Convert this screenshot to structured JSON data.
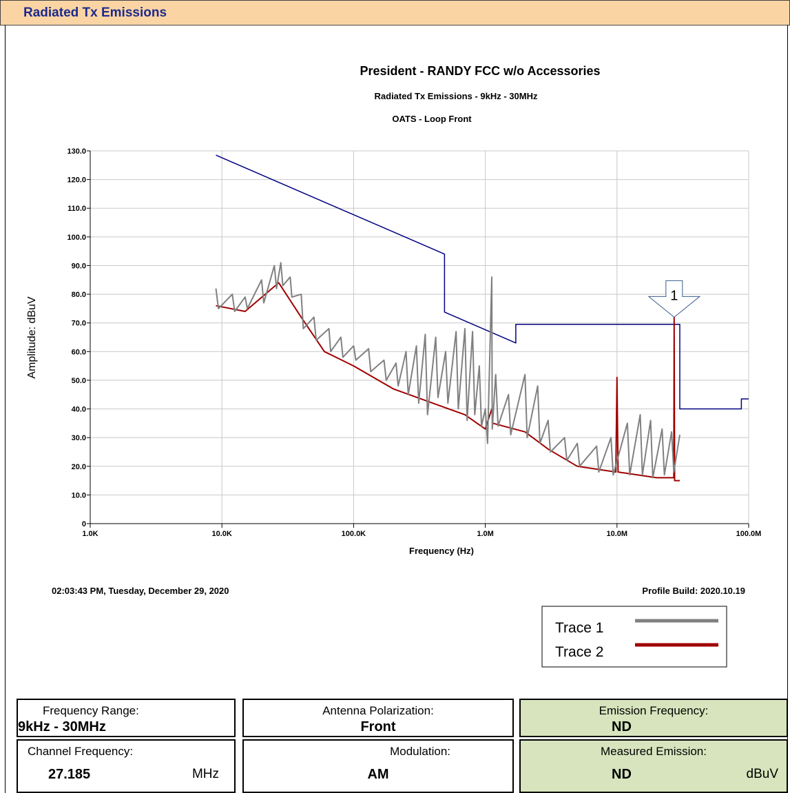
{
  "header": {
    "title": "Radiated Tx Emissions"
  },
  "chart_data": {
    "type": "line",
    "title": "President - RANDY FCC w/o Accessories",
    "subtitle": "Radiated Tx Emissions - 9kHz - 30MHz",
    "subtitle2": "OATS - Loop Front",
    "xlabel": "Frequency (Hz)",
    "ylabel": "Amplitude: dBuV",
    "xscale": "log",
    "xlim": [
      1000,
      100000000
    ],
    "xticks": [
      {
        "value": 1000,
        "label": "1.0K"
      },
      {
        "value": 10000,
        "label": "10.0K"
      },
      {
        "value": 100000,
        "label": "100.0K"
      },
      {
        "value": 1000000,
        "label": "1.0M"
      },
      {
        "value": 10000000,
        "label": "10.0M"
      },
      {
        "value": 100000000,
        "label": "100.0M"
      }
    ],
    "ylim": [
      0,
      130
    ],
    "yticks": [
      0,
      {
        "value": 10,
        "label": "10.0"
      },
      {
        "value": 20,
        "label": "20.0"
      },
      {
        "value": 30,
        "label": "30.0"
      },
      {
        "value": 40,
        "label": "40.0"
      },
      {
        "value": 50,
        "label": "50.0"
      },
      {
        "value": 60,
        "label": "60.0"
      },
      {
        "value": 70,
        "label": "70.0"
      },
      {
        "value": 80,
        "label": "80.0"
      },
      {
        "value": 90,
        "label": "90.0"
      },
      {
        "value": 100,
        "label": "100.0"
      },
      {
        "value": 110,
        "label": "110.0"
      },
      {
        "value": 120,
        "label": "120.0"
      },
      {
        "value": 130,
        "label": "130.0"
      }
    ],
    "grid": true,
    "series": [
      {
        "color": "#000080",
        "x": [
          9000,
          490000,
          490000,
          1705000,
          1705000,
          30000000,
          30000000,
          88000000,
          88000000,
          100000000
        ],
        "values": [
          128.5,
          94,
          73.8,
          63,
          69.5,
          69.5,
          40,
          40,
          43.5,
          43.5
        ]
      },
      {
        "name": "Trace 2",
        "color": "#a00000",
        "x": [
          9000,
          15000,
          27000,
          40000,
          60000,
          100000,
          200000,
          400000,
          700000,
          1000000,
          1120000,
          1140000,
          2000000,
          3000000,
          5000000,
          9800000,
          10000000,
          10200000,
          20000000,
          27000000,
          27185000,
          27400000,
          30000000
        ],
        "values": [
          76,
          74,
          84,
          72,
          60,
          55,
          47,
          42,
          38,
          33,
          40,
          35,
          32,
          26,
          20,
          18,
          51,
          18,
          16,
          16,
          72,
          15,
          15
        ]
      },
      {
        "name": "Trace 1",
        "color": "#808080",
        "x": [
          9000,
          9400,
          12000,
          12500,
          15000,
          15600,
          20000,
          20800,
          25000,
          26000,
          28000,
          29000,
          33000,
          34000,
          40000,
          41500,
          50000,
          52000,
          65000,
          67000,
          80000,
          83000,
          100000,
          104000,
          130000,
          135000,
          170000,
          177000,
          210000,
          218000,
          250000,
          260000,
          300000,
          312000,
          350000,
          364000,
          420000,
          437000,
          500000,
          520000,
          600000,
          624000,
          700000,
          728000,
          800000,
          832000,
          900000,
          936000,
          1000000,
          1040000,
          1120000,
          1130000,
          1200000,
          1250000,
          1500000,
          1560000,
          2000000,
          2080000,
          2500000,
          2600000,
          3000000,
          3120000,
          4000000,
          4160000,
          5000000,
          5200000,
          7000000,
          7280000,
          9000000,
          9360000,
          12000000,
          12500000,
          15000000,
          15600000,
          18000000,
          18700000,
          22000000,
          22900000,
          26000000,
          27000000,
          30000000
        ],
        "values": [
          82,
          75,
          80,
          74,
          79,
          75,
          85,
          77,
          90,
          82,
          91,
          83,
          86,
          79,
          80,
          68,
          72,
          64,
          68,
          60,
          65,
          58,
          62,
          57,
          61,
          53,
          57,
          50,
          56,
          48,
          60,
          45,
          62,
          42,
          66,
          38,
          65,
          44,
          60,
          42,
          67,
          40,
          68,
          36,
          67,
          38,
          55,
          34,
          40,
          28,
          86,
          33,
          52,
          34,
          45,
          31,
          52,
          30,
          48,
          28,
          36,
          25,
          30,
          22,
          28,
          20,
          27,
          18,
          30,
          17,
          35,
          17,
          38,
          17,
          36,
          16,
          33,
          17,
          32,
          18,
          31
        ]
      }
    ],
    "annotations": [
      {
        "text": "1",
        "x": 27185000,
        "y": 72
      }
    ]
  },
  "footer": {
    "timestamp": "02:03:43 PM, Tuesday, December 29, 2020",
    "build": "Profile Build: 2020.10.19"
  },
  "info": [
    {
      "label": "Frequency Range:",
      "value": "9kHz - 30MHz"
    },
    {
      "label": "Antenna Polarization:",
      "value": "Front"
    },
    {
      "label": "Emission Frequency:",
      "value": "ND"
    },
    {
      "label": "Channel Frequency:",
      "value": "27.185",
      "unit": "MHz"
    },
    {
      "label": "Modulation:",
      "value": "AM"
    },
    {
      "label": "Measured Emission:",
      "value": "ND",
      "unit": "dBuV"
    }
  ]
}
